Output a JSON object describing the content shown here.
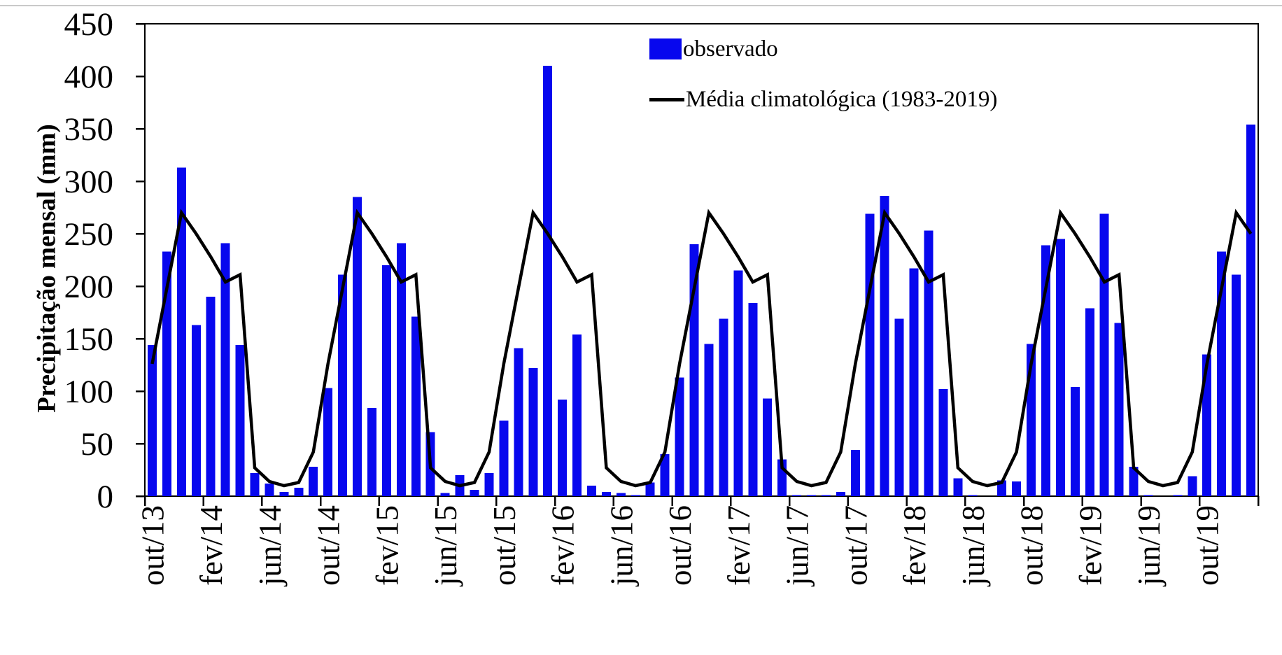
{
  "axes": {
    "y_title": "Precipitação mensal (mm)"
  },
  "legend": {
    "items": [
      {
        "label": "observado"
      },
      {
        "label": "Média climatológica (1983-2019)"
      }
    ]
  },
  "colors": {
    "bar": "#0707ee",
    "line": "#000000",
    "axis": "#000000",
    "top_rule": "#c9c9c9"
  },
  "chart_data": {
    "type": "bar",
    "title": "",
    "xlabel": "",
    "ylabel": "Precipitação mensal (mm)",
    "ylim": [
      0,
      450
    ],
    "ytick_step": 50,
    "yticks": [
      450,
      400,
      350,
      300,
      250,
      200,
      150,
      100,
      50,
      0
    ],
    "grid": false,
    "legend_position": "top-right",
    "xtick_labels": [
      "out/13",
      "fev/14",
      "jun/14",
      "out/14",
      "fev/15",
      "jun/15",
      "out/15",
      "fev/16",
      "jun/16",
      "out/16",
      "fev/17",
      "jun/17",
      "out/17",
      "fev/18",
      "jun/18",
      "out/18",
      "fev/19",
      "jun/19",
      "out/19"
    ],
    "categories": [
      "out/13",
      "nov/13",
      "dez/13",
      "jan/14",
      "fev/14",
      "mar/14",
      "abr/14",
      "mai/14",
      "jun/14",
      "jul/14",
      "ago/14",
      "set/14",
      "out/14",
      "nov/14",
      "dez/14",
      "jan/15",
      "fev/15",
      "mar/15",
      "abr/15",
      "mai/15",
      "jun/15",
      "jul/15",
      "ago/15",
      "set/15",
      "out/15",
      "nov/15",
      "dez/15",
      "jan/16",
      "fev/16",
      "mar/16",
      "abr/16",
      "mai/16",
      "jun/16",
      "jul/16",
      "ago/16",
      "set/16",
      "out/16",
      "nov/16",
      "dez/16",
      "jan/17",
      "fev/17",
      "mar/17",
      "abr/17",
      "mai/17",
      "jun/17",
      "jul/17",
      "ago/17",
      "set/17",
      "out/17",
      "nov/17",
      "dez/17",
      "jan/18",
      "fev/18",
      "mar/18",
      "abr/18",
      "mai/18",
      "jun/18",
      "jul/18",
      "ago/18",
      "set/18",
      "out/18",
      "nov/18",
      "dez/18",
      "jan/19",
      "fev/19",
      "mar/19",
      "abr/19",
      "mai/19",
      "jun/19",
      "jul/19",
      "ago/19",
      "set/19",
      "out/19",
      "nov/19",
      "dez/19",
      "jan/20"
    ],
    "series": [
      {
        "name": "observado",
        "type": "bar",
        "color": "#0707ee",
        "values": [
          144,
          233,
          313,
          163,
          190,
          241,
          144,
          22,
          12,
          4,
          8,
          28,
          103,
          211,
          285,
          84,
          220,
          241,
          171,
          61,
          3,
          20,
          6,
          22,
          72,
          141,
          122,
          410,
          92,
          154,
          10,
          4,
          3,
          1,
          13,
          40,
          113,
          240,
          145,
          169,
          215,
          184,
          93,
          35,
          1,
          1,
          1,
          4,
          44,
          269,
          286,
          169,
          217,
          253,
          102,
          17,
          1,
          0,
          15,
          14,
          145,
          239,
          245,
          104,
          179,
          269,
          165,
          28,
          1,
          0,
          1,
          19,
          135,
          233,
          211,
          354
        ]
      },
      {
        "name": "Média climatológica (1983-2019)",
        "type": "line",
        "color": "#000000",
        "monthly_climatology": {
          "jan": 250,
          "fev": 228,
          "mar": 204,
          "abr": 211,
          "mai": 27,
          "jun": 14,
          "jul": 10,
          "ago": 13,
          "set": 42,
          "out": 126,
          "nov": 198,
          "dez": 270
        }
      }
    ]
  }
}
